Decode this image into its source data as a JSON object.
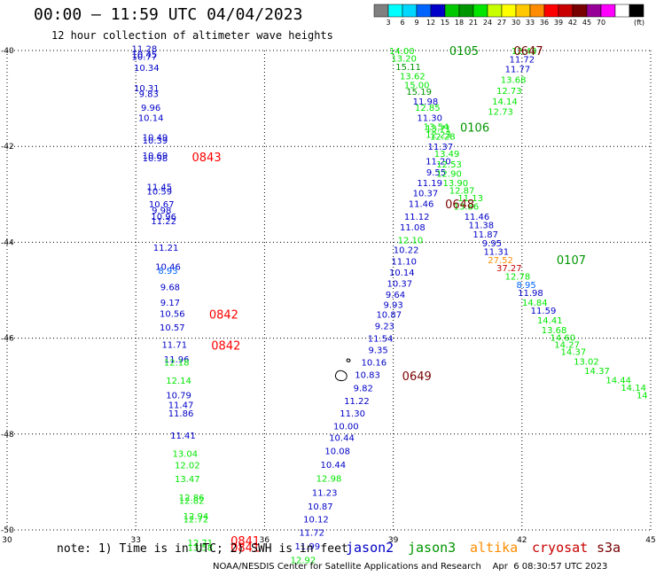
{
  "header": {
    "title": "00:00 – 11:59 UTC 04/04/2023",
    "subtitle": "12 hour collection of altimeter wave heights"
  },
  "colorbar": {
    "colors": [
      "#808080",
      "#00ffff",
      "#00d7ff",
      "#0064ff",
      "#0000c8",
      "#00c800",
      "#009600",
      "#00e600",
      "#c8ff00",
      "#ffff00",
      "#ffc800",
      "#ff8c00",
      "#ff0000",
      "#c80000",
      "#780000",
      "#960096",
      "#ff00ff",
      "#ffffff",
      "#000000"
    ],
    "labels": [
      "3",
      "6",
      "9",
      "12",
      "15",
      "18",
      "21",
      "24",
      "27",
      "30",
      "33",
      "36",
      "39",
      "42",
      "45",
      "70",
      "(ft)"
    ]
  },
  "footer": {
    "note": "note: 1) Time is in UTC; 2) SWH is in feet",
    "satellites": [
      {
        "name": "jason2",
        "color": "#0000c8"
      },
      {
        "name": "jason3",
        "color": "#009600"
      },
      {
        "name": "altika",
        "color": "#ff8c00"
      },
      {
        "name": "cryosat",
        "color": "#c80000"
      },
      {
        "name": "s3a",
        "color": "#780000"
      }
    ],
    "credit": "NOAA/NESDIS Center for Satellite Applications and Research    Apr  6 08:30:57 UTC 2023"
  },
  "chart_data": {
    "type": "scatter",
    "title": "00:00 – 11:59 UTC 04/04/2023",
    "subtitle": "12 hour collection of altimeter wave heights",
    "x_ticks": [
      "30",
      "33",
      "36",
      "39",
      "42",
      "45"
    ],
    "y_ticks": [
      "-40",
      "-42",
      "-44",
      "-46",
      "-48",
      "-50"
    ],
    "xlim": [
      30,
      45
    ],
    "ylim": [
      -50,
      -40
    ],
    "grid": true,
    "legend": "bottom",
    "points": [
      {
        "lon": 33.2,
        "lat": -39.95,
        "v": "11.28",
        "c": "#0000c8"
      },
      {
        "lon": 33.2,
        "lat": -40.07,
        "v": "10.45",
        "c": "#0000c8"
      },
      {
        "lon": 33.2,
        "lat": -40.12,
        "v": "10.77",
        "c": "#0000c8"
      },
      {
        "lon": 33.25,
        "lat": -40.35,
        "v": "10.34",
        "c": "#0000c8"
      },
      {
        "lon": 33.25,
        "lat": -40.78,
        "v": "10.31",
        "c": "#0000c8"
      },
      {
        "lon": 33.3,
        "lat": -40.9,
        "v": "9.83",
        "c": "#0000c8"
      },
      {
        "lon": 33.35,
        "lat": -41.18,
        "v": "9.96",
        "c": "#0000c8"
      },
      {
        "lon": 33.35,
        "lat": -41.4,
        "v": "10.14",
        "c": "#0000c8"
      },
      {
        "lon": 33.45,
        "lat": -41.8,
        "v": "10.49",
        "c": "#0000c8"
      },
      {
        "lon": 33.45,
        "lat": -41.87,
        "v": "10.39",
        "c": "#0000c8"
      },
      {
        "lon": 33.45,
        "lat": -42.18,
        "v": "10.69",
        "c": "#0000c8"
      },
      {
        "lon": 33.45,
        "lat": -42.24,
        "v": "10.98",
        "c": "#0000c8"
      },
      {
        "lon": 33.55,
        "lat": -42.84,
        "v": "11.45",
        "c": "#0000c8"
      },
      {
        "lon": 33.55,
        "lat": -42.93,
        "v": "10.59",
        "c": "#0000c8"
      },
      {
        "lon": 33.6,
        "lat": -43.2,
        "v": "10.67",
        "c": "#0000c8"
      },
      {
        "lon": 33.6,
        "lat": -43.33,
        "v": "9.98",
        "c": "#0000c8"
      },
      {
        "lon": 33.65,
        "lat": -43.46,
        "v": "10.96",
        "c": "#0000c8"
      },
      {
        "lon": 33.65,
        "lat": -43.55,
        "v": "11.22",
        "c": "#0000c8"
      },
      {
        "lon": 33.7,
        "lat": -44.1,
        "v": "11.21",
        "c": "#0000c8"
      },
      {
        "lon": 33.75,
        "lat": -44.5,
        "v": "10.46",
        "c": "#0000c8"
      },
      {
        "lon": 33.75,
        "lat": -44.58,
        "v": "8.93",
        "c": "#0064ff"
      },
      {
        "lon": 33.8,
        "lat": -44.93,
        "v": "9.68",
        "c": "#0000c8"
      },
      {
        "lon": 33.8,
        "lat": -45.25,
        "v": "9.17",
        "c": "#0000c8"
      },
      {
        "lon": 33.85,
        "lat": -45.48,
        "v": "10.56",
        "c": "#0000c8"
      },
      {
        "lon": 33.85,
        "lat": -45.77,
        "v": "10.57",
        "c": "#0000c8"
      },
      {
        "lon": 33.9,
        "lat": -46.13,
        "v": "11.71",
        "c": "#0000c8"
      },
      {
        "lon": 33.95,
        "lat": -46.43,
        "v": "11.96",
        "c": "#0000c8"
      },
      {
        "lon": 33.95,
        "lat": -46.5,
        "v": "12.18",
        "c": "#00e600"
      },
      {
        "lon": 34.0,
        "lat": -46.88,
        "v": "12.14",
        "c": "#00e600"
      },
      {
        "lon": 34.0,
        "lat": -47.18,
        "v": "10.79",
        "c": "#0000c8"
      },
      {
        "lon": 34.05,
        "lat": -47.38,
        "v": "11.47",
        "c": "#0000c8"
      },
      {
        "lon": 34.05,
        "lat": -47.56,
        "v": "11.86",
        "c": "#0000c8"
      },
      {
        "lon": 34.1,
        "lat": -48.02,
        "v": "11.41",
        "c": "#0000c8"
      },
      {
        "lon": 34.15,
        "lat": -48.4,
        "v": "13.04",
        "c": "#00e600"
      },
      {
        "lon": 34.2,
        "lat": -48.64,
        "v": "12.02",
        "c": "#00e600"
      },
      {
        "lon": 34.2,
        "lat": -48.93,
        "v": "13.47",
        "c": "#00e600"
      },
      {
        "lon": 34.3,
        "lat": -49.32,
        "v": "12.86",
        "c": "#00e600"
      },
      {
        "lon": 34.3,
        "lat": -49.38,
        "v": "12.82",
        "c": "#00e600"
      },
      {
        "lon": 34.4,
        "lat": -49.7,
        "v": "12.94",
        "c": "#00e600"
      },
      {
        "lon": 34.4,
        "lat": -49.77,
        "v": "12.72",
        "c": "#00e600"
      },
      {
        "lon": 34.5,
        "lat": -50.26,
        "v": "12.71",
        "c": "#00e600"
      },
      {
        "lon": 34.5,
        "lat": -50.36,
        "v": "13.58",
        "c": "#00e600"
      },
      {
        "lon": 39.2,
        "lat": -40.0,
        "v": "14.00",
        "c": "#00e600"
      },
      {
        "lon": 39.25,
        "lat": -40.16,
        "v": "13.20",
        "c": "#00e600"
      },
      {
        "lon": 39.35,
        "lat": -40.33,
        "v": "15.11",
        "c": "#009600"
      },
      {
        "lon": 39.45,
        "lat": -40.53,
        "v": "13.62",
        "c": "#00e600"
      },
      {
        "lon": 39.55,
        "lat": -40.71,
        "v": "15.00",
        "c": "#00e600"
      },
      {
        "lon": 39.6,
        "lat": -40.85,
        "v": "15.19",
        "c": "#009600"
      },
      {
        "lon": 39.75,
        "lat": -41.05,
        "v": "11.98",
        "c": "#0000c8"
      },
      {
        "lon": 39.8,
        "lat": -41.18,
        "v": "12.85",
        "c": "#00e600"
      },
      {
        "lon": 39.85,
        "lat": -41.4,
        "v": "11.30",
        "c": "#0000c8"
      },
      {
        "lon": 40.0,
        "lat": -41.58,
        "v": "13.54",
        "c": "#00e600"
      },
      {
        "lon": 40.05,
        "lat": -41.62,
        "v": "13.71",
        "c": "#00e600"
      },
      {
        "lon": 40.05,
        "lat": -41.75,
        "v": "12.23",
        "c": "#00e600"
      },
      {
        "lon": 40.15,
        "lat": -41.78,
        "v": "12.28",
        "c": "#00e600"
      },
      {
        "lon": 40.1,
        "lat": -42.0,
        "v": "11.37",
        "c": "#0000c8"
      },
      {
        "lon": 40.25,
        "lat": -42.14,
        "v": "13.49",
        "c": "#00e600"
      },
      {
        "lon": 40.05,
        "lat": -42.3,
        "v": "11.20",
        "c": "#0000c8"
      },
      {
        "lon": 40.3,
        "lat": -42.37,
        "v": "12.53",
        "c": "#00e600"
      },
      {
        "lon": 40.0,
        "lat": -42.53,
        "v": "9.55",
        "c": "#0000c8"
      },
      {
        "lon": 40.3,
        "lat": -42.56,
        "v": "12.90",
        "c": "#00e600"
      },
      {
        "lon": 39.85,
        "lat": -42.75,
        "v": "11.19",
        "c": "#0000c8"
      },
      {
        "lon": 40.45,
        "lat": -42.75,
        "v": "13.90",
        "c": "#00e600"
      },
      {
        "lon": 39.75,
        "lat": -42.97,
        "v": "10.37",
        "c": "#0000c8"
      },
      {
        "lon": 40.6,
        "lat": -42.91,
        "v": "12.87",
        "c": "#00e600"
      },
      {
        "lon": 40.8,
        "lat": -43.07,
        "v": "11.13",
        "c": "#00e600"
      },
      {
        "lon": 39.65,
        "lat": -43.19,
        "v": "11.46",
        "c": "#0000c8"
      },
      {
        "lon": 40.7,
        "lat": -43.24,
        "v": "13.86",
        "c": "#00e600"
      },
      {
        "lon": 39.55,
        "lat": -43.46,
        "v": "11.12",
        "c": "#0000c8"
      },
      {
        "lon": 40.95,
        "lat": -43.46,
        "v": "11.46",
        "c": "#0000c8"
      },
      {
        "lon": 41.05,
        "lat": -43.63,
        "v": "11.38",
        "c": "#0000c8"
      },
      {
        "lon": 39.45,
        "lat": -43.68,
        "v": "11.08",
        "c": "#0000c8"
      },
      {
        "lon": 41.15,
        "lat": -43.83,
        "v": "11.87",
        "c": "#0000c8"
      },
      {
        "lon": 39.4,
        "lat": -43.95,
        "v": "12.10",
        "c": "#00e600"
      },
      {
        "lon": 41.3,
        "lat": -44.01,
        "v": "9.95",
        "c": "#0000c8"
      },
      {
        "lon": 39.3,
        "lat": -44.15,
        "v": "10.22",
        "c": "#0000c8"
      },
      {
        "lon": 41.4,
        "lat": -44.19,
        "v": "11.31",
        "c": "#0000c8"
      },
      {
        "lon": 41.5,
        "lat": -44.36,
        "v": "27.52",
        "c": "#ff8c00"
      },
      {
        "lon": 39.25,
        "lat": -44.39,
        "v": "11.10",
        "c": "#0000c8"
      },
      {
        "lon": 41.7,
        "lat": -44.53,
        "v": "37.27",
        "c": "#c80000"
      },
      {
        "lon": 39.2,
        "lat": -44.62,
        "v": "10.14",
        "c": "#0000c8"
      },
      {
        "lon": 41.9,
        "lat": -44.7,
        "v": "12.78",
        "c": "#00e600"
      },
      {
        "lon": 39.15,
        "lat": -44.85,
        "v": "10.37",
        "c": "#0000c8"
      },
      {
        "lon": 42.1,
        "lat": -44.88,
        "v": "8.95",
        "c": "#0064ff"
      },
      {
        "lon": 39.05,
        "lat": -45.08,
        "v": "9.64",
        "c": "#0000c8"
      },
      {
        "lon": 42.2,
        "lat": -45.05,
        "v": "11.98",
        "c": "#0000c8"
      },
      {
        "lon": 39.0,
        "lat": -45.3,
        "v": "9.93",
        "c": "#0000c8"
      },
      {
        "lon": 42.3,
        "lat": -45.25,
        "v": "14.84",
        "c": "#00e600"
      },
      {
        "lon": 38.9,
        "lat": -45.5,
        "v": "10.87",
        "c": "#0000c8"
      },
      {
        "lon": 42.5,
        "lat": -45.42,
        "v": "11.59",
        "c": "#0000c8"
      },
      {
        "lon": 38.8,
        "lat": -45.74,
        "v": "9.23",
        "c": "#0000c8"
      },
      {
        "lon": 42.65,
        "lat": -45.62,
        "v": "14.41",
        "c": "#00e600"
      },
      {
        "lon": 42.75,
        "lat": -45.82,
        "v": "13.68",
        "c": "#00e600"
      },
      {
        "lon": 38.7,
        "lat": -46.0,
        "v": "11.54",
        "c": "#0000c8"
      },
      {
        "lon": 42.95,
        "lat": -45.98,
        "v": "14.60",
        "c": "#00e600"
      },
      {
        "lon": 43.05,
        "lat": -46.13,
        "v": "14.27",
        "c": "#00e600"
      },
      {
        "lon": 38.65,
        "lat": -46.24,
        "v": "9.35",
        "c": "#0000c8"
      },
      {
        "lon": 43.2,
        "lat": -46.28,
        "v": "14.37",
        "c": "#00e600"
      },
      {
        "lon": 43.5,
        "lat": -46.48,
        "v": "13.02",
        "c": "#00e600"
      },
      {
        "lon": 38.55,
        "lat": -46.5,
        "v": "10.16",
        "c": "#0000c8"
      },
      {
        "lon": 43.75,
        "lat": -46.67,
        "v": "14.37",
        "c": "#00e600"
      },
      {
        "lon": 38.4,
        "lat": -46.76,
        "v": "10.83",
        "c": "#0000c8"
      },
      {
        "lon": 44.25,
        "lat": -46.87,
        "v": "14.44",
        "c": "#00e600"
      },
      {
        "lon": 44.6,
        "lat": -47.02,
        "v": "14.14",
        "c": "#00e600"
      },
      {
        "lon": 38.3,
        "lat": -47.03,
        "v": "9.82",
        "c": "#0000c8"
      },
      {
        "lon": 44.8,
        "lat": -47.18,
        "v": "14",
        "c": "#00e600"
      },
      {
        "lon": 38.15,
        "lat": -47.3,
        "v": "11.22",
        "c": "#0000c8"
      },
      {
        "lon": 38.05,
        "lat": -47.56,
        "v": "11.30",
        "c": "#0000c8"
      },
      {
        "lon": 37.9,
        "lat": -47.83,
        "v": "10.00",
        "c": "#0000c8"
      },
      {
        "lon": 37.8,
        "lat": -48.07,
        "v": "10.44",
        "c": "#0000c8"
      },
      {
        "lon": 37.7,
        "lat": -48.35,
        "v": "10.08",
        "c": "#0000c8"
      },
      {
        "lon": 37.6,
        "lat": -48.63,
        "v": "10.44",
        "c": "#0000c8"
      },
      {
        "lon": 37.5,
        "lat": -48.92,
        "v": "12.98",
        "c": "#00e600"
      },
      {
        "lon": 37.4,
        "lat": -49.21,
        "v": "11.23",
        "c": "#0000c8"
      },
      {
        "lon": 37.3,
        "lat": -49.5,
        "v": "10.87",
        "c": "#0000c8"
      },
      {
        "lon": 37.2,
        "lat": -49.77,
        "v": "10.12",
        "c": "#0000c8"
      },
      {
        "lon": 37.1,
        "lat": -50.05,
        "v": "11.72",
        "c": "#0000c8"
      },
      {
        "lon": 37.0,
        "lat": -50.33,
        "v": "11.99",
        "c": "#0000c8"
      },
      {
        "lon": 36.9,
        "lat": -50.62,
        "v": "12.92",
        "c": "#00e600"
      },
      {
        "lon": 42.05,
        "lat": -40.0,
        "v": "12.43",
        "c": "#00e600"
      },
      {
        "lon": 42.0,
        "lat": -40.18,
        "v": "11.72",
        "c": "#0000c8"
      },
      {
        "lon": 41.9,
        "lat": -40.38,
        "v": "11.77",
        "c": "#0000c8"
      },
      {
        "lon": 41.8,
        "lat": -40.6,
        "v": "13.68",
        "c": "#00e600"
      },
      {
        "lon": 41.7,
        "lat": -40.83,
        "v": "12.73",
        "c": "#00e600"
      },
      {
        "lon": 41.6,
        "lat": -41.05,
        "v": "14.14",
        "c": "#00e600"
      },
      {
        "lon": 41.5,
        "lat": -41.27,
        "v": "12.73",
        "c": "#00e600"
      }
    ],
    "time_labels": [
      {
        "lon": 34.65,
        "lat": -42.22,
        "t": "0843",
        "c": "#ff0000"
      },
      {
        "lon": 35.05,
        "lat": -45.5,
        "t": "0842",
        "c": "#ff0000"
      },
      {
        "lon": 35.1,
        "lat": -46.15,
        "t": "0842",
        "c": "#ff0000"
      },
      {
        "lon": 35.55,
        "lat": -50.22,
        "t": "0841",
        "c": "#ff0000"
      },
      {
        "lon": 35.55,
        "lat": -50.36,
        "t": "0841",
        "c": "#ff0000"
      },
      {
        "lon": 40.65,
        "lat": -40.0,
        "t": "0105",
        "c": "#009600"
      },
      {
        "lon": 40.9,
        "lat": -41.6,
        "t": "0106",
        "c": "#009600"
      },
      {
        "lon": 42.15,
        "lat": -40.0,
        "t": "0647",
        "c": "#780000"
      },
      {
        "lon": 40.55,
        "lat": -43.2,
        "t": "0648",
        "c": "#780000"
      },
      {
        "lon": 39.55,
        "lat": -46.78,
        "t": "0649",
        "c": "#780000"
      },
      {
        "lon": 43.15,
        "lat": -44.36,
        "t": "0107",
        "c": "#009600"
      }
    ]
  }
}
